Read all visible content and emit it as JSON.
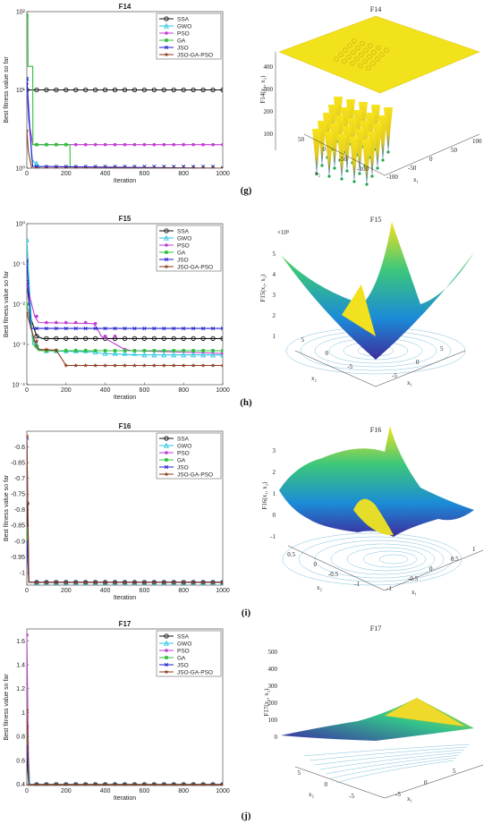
{
  "labels": {
    "g": "(g)",
    "h": "(h)",
    "i": "(i)",
    "j": "(j)"
  },
  "colors": {
    "SSA": "#111111",
    "GWO": "#27c5e0",
    "PSO": "#c23bd4",
    "GA": "#2fbf3c",
    "JSO": "#1f1fcf",
    "JSO-GA-PSO": "#8b3a1a"
  },
  "legend": [
    "SSA",
    "GWO",
    "PSO",
    "GA",
    "JSO",
    "JSO-GA-PSO"
  ],
  "surfaces": [
    {
      "title": "F14",
      "zlabel": "F14(x₁, x₂)",
      "x1": "x₁",
      "x2": "x₂",
      "zticks": [
        "100",
        "200",
        "300",
        "400"
      ],
      "x1ticks": [
        "-100",
        "-50",
        "0",
        "50",
        "100"
      ],
      "x2ticks": [
        "-100",
        "-50",
        "0",
        "50"
      ]
    },
    {
      "title": "F15",
      "zlabel": "F15(x₁, x₂)",
      "x1": "x₁",
      "x2": "x₂",
      "zticks": [
        "1",
        "2",
        "3",
        "4",
        "5"
      ],
      "zexp": "×10⁵",
      "x1ticks": [
        "-5",
        "0",
        "5"
      ],
      "x2ticks": [
        "-5",
        "0",
        "5"
      ]
    },
    {
      "title": "F16",
      "zlabel": "F16(x₁, x₂)",
      "x1": "x₁",
      "x2": "x₂",
      "zticks": [
        "-1",
        "0",
        "1",
        "2",
        "3"
      ],
      "x1ticks": [
        "-1",
        "-0.5",
        "0",
        "0.5",
        "1"
      ],
      "x2ticks": [
        "-1",
        "-0.5",
        "0",
        "0.5"
      ]
    },
    {
      "title": "F17",
      "zlabel": "F17(x₁, x₂)",
      "x1": "x₁",
      "x2": "x₂",
      "zticks": [
        "0",
        "100",
        "200",
        "300",
        "400",
        "500"
      ],
      "x1ticks": [
        "-5",
        "0",
        "5"
      ],
      "x2ticks": [
        "-5",
        "0",
        "5"
      ]
    }
  ],
  "chart_data": [
    {
      "type": "line",
      "title": "F14",
      "xlabel": "Iteration",
      "ylabel": "Best fitness value so far",
      "xlim": [
        0,
        1000
      ],
      "ylim": [
        1,
        100
      ],
      "yscale": "log",
      "xticks": [
        0,
        200,
        400,
        600,
        800,
        1000
      ],
      "yticks": [
        {
          "v": 1,
          "label": "10⁰"
        },
        {
          "v": 10,
          "label": "10¹"
        },
        {
          "v": 100,
          "label": "10²"
        }
      ],
      "legend_position": "top-right",
      "series": [
        {
          "name": "SSA",
          "points": [
            [
              0,
              10
            ],
            [
              1000,
              10
            ]
          ]
        },
        {
          "name": "GWO",
          "points": [
            [
              0,
              14
            ],
            [
              10,
              6
            ],
            [
              25,
              1.3
            ],
            [
              45,
              1.15
            ],
            [
              70,
              1
            ],
            [
              1000,
              1
            ]
          ]
        },
        {
          "name": "PSO",
          "points": [
            [
              0,
              12
            ],
            [
              10,
              4
            ],
            [
              30,
              2
            ],
            [
              1000,
              2
            ]
          ]
        },
        {
          "name": "GA",
          "points": [
            [
              0,
              90
            ],
            [
              5,
              90
            ],
            [
              6,
              20
            ],
            [
              30,
              20
            ],
            [
              31,
              2
            ],
            [
              220,
              2
            ],
            [
              221,
              1
            ],
            [
              1000,
              1
            ]
          ]
        },
        {
          "name": "JSO",
          "points": [
            [
              0,
              14
            ],
            [
              12,
              4
            ],
            [
              30,
              1.05
            ],
            [
              1000,
              1
            ]
          ]
        },
        {
          "name": "JSO-GA-PSO",
          "points": [
            [
              0,
              3
            ],
            [
              8,
              1.6
            ],
            [
              25,
              1
            ],
            [
              1000,
              1
            ]
          ]
        }
      ]
    },
    {
      "type": "line",
      "title": "F15",
      "xlabel": "Iteration",
      "ylabel": "Best fitness value so far",
      "xlim": [
        0,
        1000
      ],
      "ylim": [
        0.0001,
        1
      ],
      "yscale": "log",
      "xticks": [
        0,
        200,
        400,
        600,
        800,
        1000
      ],
      "yticks": [
        {
          "v": 0.0001,
          "label": "10⁻⁴"
        },
        {
          "v": 0.001,
          "label": "10⁻³"
        },
        {
          "v": 0.01,
          "label": "10⁻²"
        },
        {
          "v": 0.1,
          "label": "10⁻¹"
        },
        {
          "v": 1,
          "label": "10⁰"
        }
      ],
      "legend_position": "top-right",
      "series": [
        {
          "name": "SSA",
          "points": [
            [
              0,
              0.035
            ],
            [
              20,
              0.0045
            ],
            [
              50,
              0.0016
            ],
            [
              80,
              0.0014
            ],
            [
              200,
              0.0014
            ],
            [
              1000,
              0.0014
            ]
          ]
        },
        {
          "name": "GWO",
          "points": [
            [
              0,
              0.4
            ],
            [
              10,
              0.05
            ],
            [
              30,
              0.001
            ],
            [
              80,
              0.0007
            ],
            [
              350,
              0.00065
            ],
            [
              380,
              0.0006
            ],
            [
              560,
              0.00055
            ],
            [
              1000,
              0.00055
            ]
          ]
        },
        {
          "name": "PSO",
          "points": [
            [
              0,
              0.03
            ],
            [
              40,
              0.005
            ],
            [
              60,
              0.0035
            ],
            [
              340,
              0.0033
            ],
            [
              360,
              0.0025
            ],
            [
              380,
              0.0016
            ],
            [
              500,
              0.00075
            ],
            [
              540,
              0.0007
            ],
            [
              1000,
              0.0006
            ]
          ]
        },
        {
          "name": "GA",
          "points": [
            [
              0,
              0.01
            ],
            [
              40,
              0.0009
            ],
            [
              60,
              0.0007
            ],
            [
              1000,
              0.0007
            ]
          ]
        },
        {
          "name": "JSO",
          "points": [
            [
              0,
              0.12
            ],
            [
              20,
              0.0025
            ],
            [
              1000,
              0.0025
            ]
          ]
        },
        {
          "name": "JSO-GA-PSO",
          "points": [
            [
              0,
              0.006
            ],
            [
              40,
              0.0012
            ],
            [
              60,
              0.00075
            ],
            [
              150,
              0.00072
            ],
            [
              200,
              0.0003
            ],
            [
              1000,
              0.0003
            ]
          ]
        }
      ]
    },
    {
      "type": "line",
      "title": "F16",
      "xlabel": "Iteration",
      "ylabel": "Best fitness value so far",
      "xlim": [
        0,
        1000
      ],
      "ylim": [
        -1.04,
        -0.55
      ],
      "yscale": "linear",
      "xticks": [
        0,
        200,
        400,
        600,
        800,
        1000
      ],
      "yticks": [
        {
          "v": -0.6,
          "label": "-0.6"
        },
        {
          "v": -0.65,
          "label": "-0.65"
        },
        {
          "v": -0.7,
          "label": "-0.7"
        },
        {
          "v": -0.75,
          "label": "-0.75"
        },
        {
          "v": -0.8,
          "label": "-0.8"
        },
        {
          "v": -0.85,
          "label": "-0.85"
        },
        {
          "v": -0.9,
          "label": "-0.9"
        },
        {
          "v": -0.95,
          "label": "-0.95"
        },
        {
          "v": -1,
          "label": "-1"
        }
      ],
      "legend_position": "top-right",
      "series": [
        {
          "name": "SSA",
          "points": [
            [
              0,
              -0.78
            ],
            [
              10,
              -1.031
            ],
            [
              1000,
              -1.031
            ]
          ]
        },
        {
          "name": "GWO",
          "points": [
            [
              0,
              -0.57
            ],
            [
              10,
              -1.031
            ],
            [
              1000,
              -1.031
            ]
          ]
        },
        {
          "name": "PSO",
          "points": [
            [
              0,
              -0.57
            ],
            [
              10,
              -1.031
            ],
            [
              1000,
              -1.031
            ]
          ]
        },
        {
          "name": "GA",
          "points": [
            [
              0,
              -0.86
            ],
            [
              10,
              -1.031
            ],
            [
              1000,
              -1.031
            ]
          ]
        },
        {
          "name": "JSO",
          "points": [
            [
              0,
              -0.9
            ],
            [
              10,
              -1.031
            ],
            [
              1000,
              -1.031
            ]
          ]
        },
        {
          "name": "JSO-GA-PSO",
          "points": [
            [
              0,
              -0.565
            ],
            [
              10,
              -1.031
            ],
            [
              1000,
              -1.031
            ]
          ]
        }
      ]
    },
    {
      "type": "line",
      "title": "F17",
      "xlabel": "Iteration",
      "ylabel": "Best fitness value so far",
      "xlim": [
        0,
        1000
      ],
      "ylim": [
        0.39,
        1.7
      ],
      "yscale": "linear",
      "xticks": [
        0,
        200,
        400,
        600,
        800,
        1000
      ],
      "yticks": [
        {
          "v": 0.4,
          "label": "0.4"
        },
        {
          "v": 0.6,
          "label": "0.6"
        },
        {
          "v": 0.8,
          "label": "0.8"
        },
        {
          "v": 1,
          "label": "1"
        },
        {
          "v": 1.2,
          "label": "1.2"
        },
        {
          "v": 1.4,
          "label": "1.4"
        },
        {
          "v": 1.6,
          "label": "1.6"
        }
      ],
      "legend_position": "top-right",
      "series": [
        {
          "name": "SSA",
          "points": [
            [
              0,
              0.61
            ],
            [
              10,
              0.398
            ],
            [
              1000,
              0.398
            ]
          ]
        },
        {
          "name": "GWO",
          "points": [
            [
              0,
              0.9
            ],
            [
              15,
              0.4
            ],
            [
              1000,
              0.398
            ]
          ]
        },
        {
          "name": "PSO",
          "points": [
            [
              0,
              1.65
            ],
            [
              10,
              0.398
            ],
            [
              1000,
              0.398
            ]
          ]
        },
        {
          "name": "GA",
          "points": [
            [
              0,
              0.8
            ],
            [
              10,
              0.4
            ],
            [
              1000,
              0.398
            ]
          ]
        },
        {
          "name": "JSO",
          "points": [
            [
              0,
              0.72
            ],
            [
              10,
              0.398
            ],
            [
              1000,
              0.398
            ]
          ]
        },
        {
          "name": "JSO-GA-PSO",
          "points": [
            [
              0,
              1.02
            ],
            [
              10,
              0.398
            ],
            [
              1000,
              0.398
            ]
          ]
        }
      ]
    }
  ]
}
